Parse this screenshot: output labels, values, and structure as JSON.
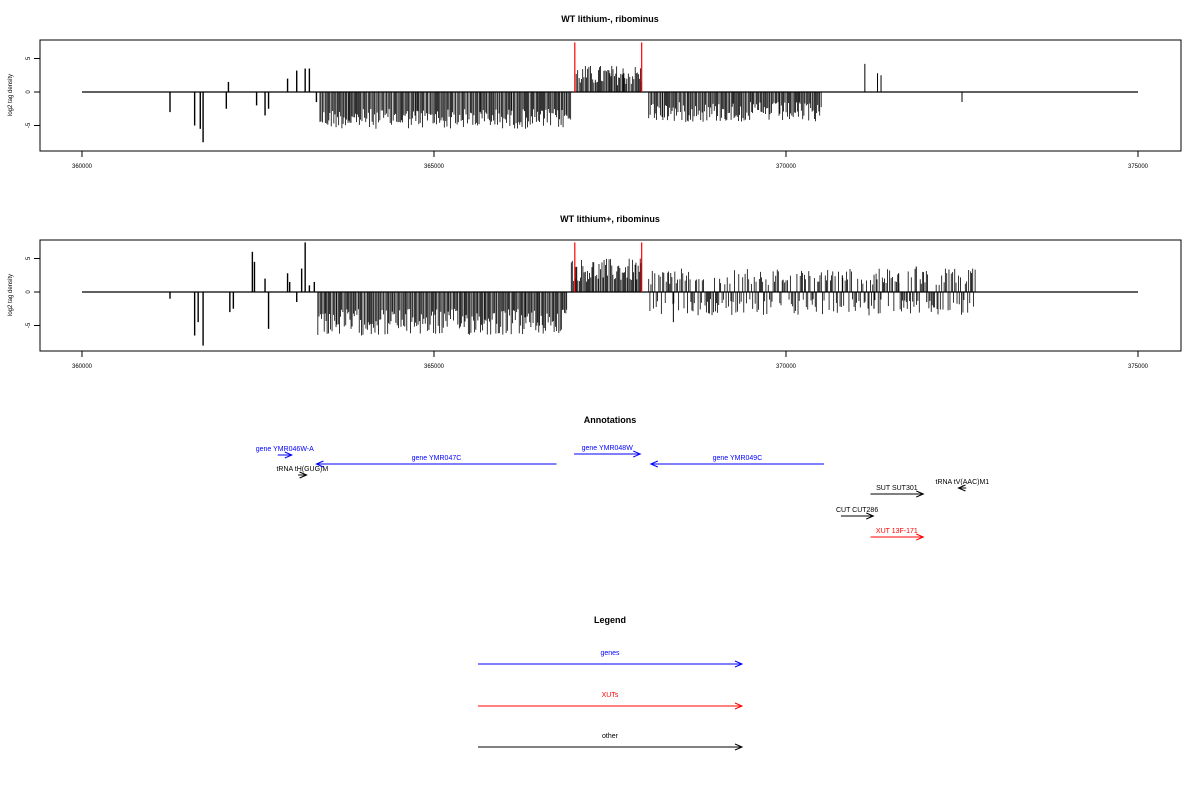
{
  "chart_data": [
    {
      "type": "bar",
      "title": "WT lithium-, ribominus",
      "xlabel": "",
      "ylabel": "log2 tag density",
      "xlim": [
        359400,
        375600
      ],
      "ylim": [
        -8.5,
        8.5
      ],
      "xticks": [
        360000,
        365000,
        370000,
        375000
      ],
      "yticks": [
        5,
        0,
        -5
      ],
      "baseline": {
        "x": [
          360000,
          375000
        ],
        "y": 0
      },
      "markers": [
        {
          "x": 367000,
          "y": 7.4
        },
        {
          "x": 367950,
          "y": 7.4
        }
      ],
      "marker_color": "#ff0000",
      "bar_color": "#000000",
      "series": [
        {
          "x": [
            361250,
            361600,
            361680,
            361720,
            362050,
            362080,
            362480,
            362600,
            362650,
            362920,
            363050,
            363170,
            363230,
            363330
          ],
          "values": [
            -3.0,
            -5.0,
            -5.5,
            -7.5,
            -2.5,
            1.5,
            -2.0,
            -3.5,
            -2.5,
            2.0,
            3.2,
            3.5,
            3.5,
            -1.5
          ]
        }
      ],
      "segments": [
        {
          "from": 363380,
          "to": 366950,
          "min": -5.5,
          "max": -2.5
        },
        {
          "from": 367020,
          "to": 367950,
          "min": 1.0,
          "max": 4.0
        },
        {
          "from": 368050,
          "to": 370500,
          "min": -4.5,
          "max": -1.5
        }
      ],
      "extra_series": [
        {
          "x": [
            371120,
            371300,
            371350,
            372500
          ],
          "values": [
            4.2,
            2.8,
            2.5,
            -1.5
          ]
        }
      ]
    },
    {
      "type": "bar",
      "title": "WT lithium+, ribominus",
      "xlabel": "",
      "ylabel": "log2 tag density",
      "xlim": [
        359400,
        375600
      ],
      "ylim": [
        -8.5,
        8.5
      ],
      "xticks": [
        360000,
        365000,
        370000,
        375000
      ],
      "yticks": [
        5,
        0,
        -5
      ],
      "baseline": {
        "x": [
          360000,
          375000
        ],
        "y": 0
      },
      "markers": [
        {
          "x": 367000,
          "y": 7.4
        },
        {
          "x": 367950,
          "y": 7.4
        }
      ],
      "marker_color": "#ff0000",
      "bar_color": "#000000",
      "series": [
        {
          "x": [
            361250,
            361600,
            361650,
            361720,
            362100,
            362150,
            362420,
            362450,
            362600,
            362650,
            362920,
            362950,
            363050,
            363120,
            363170,
            363230,
            363300
          ],
          "values": [
            -1.0,
            -6.5,
            -4.5,
            -8.0,
            -3.0,
            -2.5,
            6.0,
            4.5,
            2.0,
            -5.5,
            2.8,
            1.5,
            -1.5,
            3.5,
            7.4,
            1.0,
            1.5
          ]
        }
      ],
      "segments": [
        {
          "from": 363350,
          "to": 366900,
          "min": -6.5,
          "max": -2.5
        },
        {
          "from": 366950,
          "to": 367950,
          "min": 1.5,
          "max": 5.0
        },
        {
          "from": 368050,
          "to": 372700,
          "min": -3.5,
          "max": 3.5
        }
      ],
      "extra_series": [
        {
          "x": [
            368400,
            370800,
            371250,
            371600,
            371850,
            372000
          ],
          "values": [
            -4.5,
            2.5,
            -2.5,
            2.8,
            3.8,
            -1.5
          ]
        }
      ]
    }
  ],
  "annotations": {
    "title": "Annotations",
    "items": [
      {
        "label": "gene YMR046W-A",
        "color": "#0000ff",
        "from": 362780,
        "to": 362980
      },
      {
        "label": "tRNA tH(GUG)M",
        "color": "#000000",
        "from": 363070,
        "to": 363190
      },
      {
        "label": "gene YMR047C",
        "color": "#0000ff",
        "from": 366740,
        "to": 363330
      },
      {
        "label": "gene YMR048W",
        "color": "#0000ff",
        "from": 366990,
        "to": 367930
      },
      {
        "label": "gene YMR049C",
        "color": "#0000ff",
        "from": 370540,
        "to": 368080
      },
      {
        "label": "tRNA tV(AAC)M1",
        "color": "#000000",
        "from": 372560,
        "to": 372450
      },
      {
        "label": "SUT SUT301",
        "color": "#000000",
        "from": 371200,
        "to": 371950
      },
      {
        "label": "CUT CUT286",
        "color": "#000000",
        "from": 370780,
        "to": 371240
      },
      {
        "label": "XUT 13F-171",
        "color": "#ff0000",
        "from": 371200,
        "to": 371950
      }
    ]
  },
  "legend": {
    "title": "Legend",
    "items": [
      {
        "label": "genes",
        "color": "#0000ff"
      },
      {
        "label": "XUTs",
        "color": "#ff0000"
      },
      {
        "label": "other",
        "color": "#000000"
      }
    ]
  }
}
